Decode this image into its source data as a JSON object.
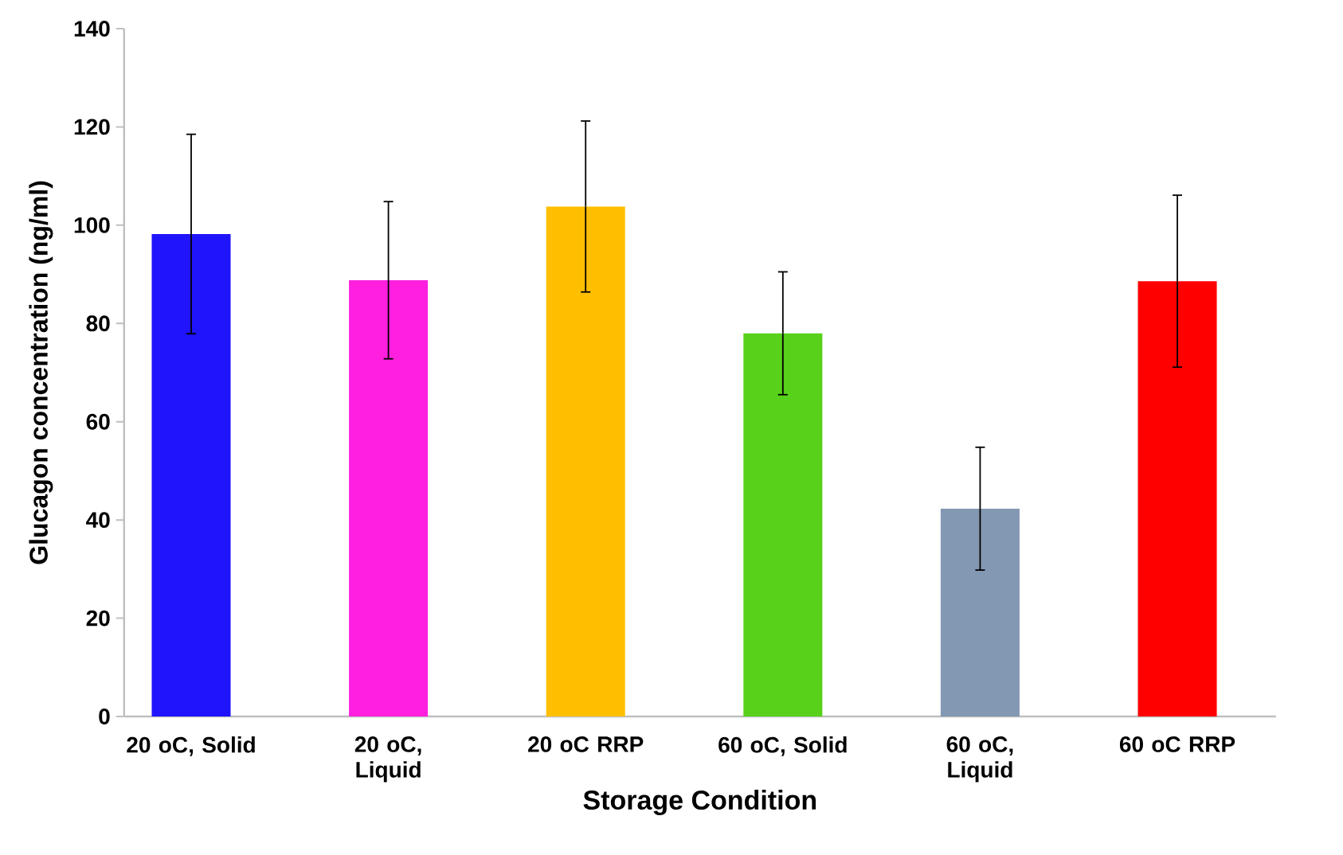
{
  "chart_data": {
    "type": "bar",
    "xlabel": "Storage Condition",
    "ylabel": "Glucagon concentration (ng/ml)",
    "categories": [
      "20 oC, Solid",
      "20 oC, Liquid",
      "20 oC RRP",
      "60 oC, Solid",
      "60 oC, Liquid",
      "60 oC RRP"
    ],
    "values": [
      98.2,
      88.8,
      103.8,
      78.0,
      42.3,
      88.6
    ],
    "errors": [
      20.3,
      16.0,
      17.4,
      12.5,
      12.5,
      17.5
    ],
    "colors": [
      "#1f14fb",
      "#ff1fdf",
      "#ffbf00",
      "#57d11a",
      "#8398b2",
      "#ff0000"
    ],
    "ylim": [
      0,
      140
    ],
    "yticks": [
      0,
      20,
      40,
      60,
      80,
      100,
      120,
      140
    ]
  }
}
